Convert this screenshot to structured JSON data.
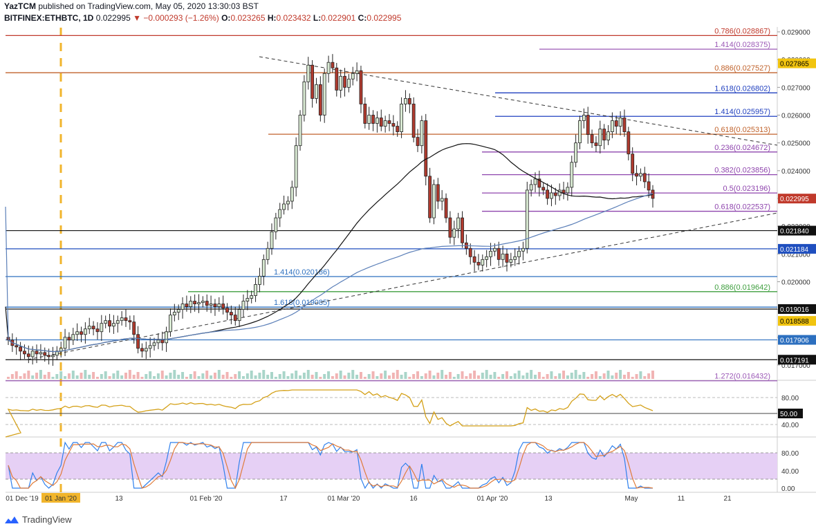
{
  "header": {
    "author": "YazTCM",
    "published_text": "published on TradingView.com, May 05, 2020 13:30:03 BST",
    "symbol": "BITFINEX:ETHBTC, 1D",
    "last": "0.022995",
    "change": "−0.000293 (−1.26%)",
    "o_label": "O:",
    "o": "0.023265",
    "h_label": "H:",
    "h": "0.023432",
    "l_label": "L:",
    "l": "0.022901",
    "c_label": "C:",
    "c": "0.022995"
  },
  "footer": {
    "brand": "TradingView"
  },
  "colors": {
    "up": "#3e8e3e",
    "down": "#b03030",
    "candle_up_fill": "#d9ead3",
    "candle_down_fill": "#b03a2e",
    "ma_black": "#111111",
    "ma_blue": "#5b7fb8",
    "rsi": "#d4a017",
    "stoch_k": "#2f80ed",
    "stoch_d": "#e07b39",
    "stoch_band": "#e6d0f5"
  },
  "price_axis": {
    "ticks": [
      "0.029000",
      "0.028000",
      "0.027000",
      "0.026000",
      "0.025000",
      "0.024000",
      "0.023000",
      "0.022000",
      "0.021000",
      "0.020000",
      "0.019000",
      "0.018000",
      "0.017000"
    ]
  },
  "time_axis": {
    "labels": [
      "01 Dec '19",
      "01 Jan '20",
      "13",
      "01 Feb '20",
      "17",
      "01 Mar '20",
      "16",
      "01 Apr '20",
      "13",
      "May",
      "11",
      "21"
    ]
  },
  "levels": [
    {
      "label": "0.786",
      "value": "0.028867",
      "color": "#c0392b"
    },
    {
      "label": "1.414",
      "value": "0.028375",
      "color": "#9b59b6"
    },
    {
      "label": "0.886",
      "value": "0.027527",
      "color": "#c0622b"
    },
    {
      "label": "1.618",
      "value": "0.026802",
      "color": "#1f3fbf"
    },
    {
      "label": "1.414",
      "value": "0.025957",
      "color": "#1f3fbf"
    },
    {
      "label": "0.618",
      "value": "0.025313",
      "color": "#c0622b"
    },
    {
      "label": "0.236",
      "value": "0.024672",
      "color": "#8e44ad"
    },
    {
      "label": "0.382",
      "value": "0.023856",
      "color": "#8e44ad"
    },
    {
      "label": "0.5",
      "value": "0.023196",
      "color": "#8e44ad"
    },
    {
      "label": "0.618",
      "value": "0.022537",
      "color": "#8e44ad"
    },
    {
      "label": "1.414",
      "value": "0.020186",
      "color": "#2c6fbf"
    },
    {
      "label": "0.886",
      "value": "0.019642",
      "color": "#3e9e3e"
    },
    {
      "label": "1.618",
      "value": "0.019085",
      "color": "#2c6fbf"
    },
    {
      "label": "1.272",
      "value": "0.016432",
      "color": "#9b59b6"
    }
  ],
  "price_tags": [
    {
      "value": "0.027865",
      "bg": "#f1c40f",
      "fg": "#000000"
    },
    {
      "value": "0.022995",
      "bg": "#c0392b",
      "fg": "#ffffff"
    },
    {
      "value": "0.021840",
      "bg": "#111111",
      "fg": "#ffffff"
    },
    {
      "value": "0.021184",
      "bg": "#1f4fbf",
      "fg": "#ffffff"
    },
    {
      "value": "0.019016",
      "bg": "#111111",
      "fg": "#ffffff"
    },
    {
      "value": "0.018588",
      "bg": "#f1c40f",
      "fg": "#000000"
    },
    {
      "value": "0.017906",
      "bg": "#2c6fbf",
      "fg": "#ffffff"
    },
    {
      "value": "0.017191",
      "bg": "#111111",
      "fg": "#ffffff"
    }
  ],
  "rsi_axis": {
    "ticks": [
      "80.00",
      "40.00"
    ],
    "tag": "50.00"
  },
  "stoch_axis": {
    "ticks": [
      "80.00",
      "40.00",
      "0.00"
    ]
  },
  "chart_data": {
    "type": "candlestick",
    "symbol": "BITFINEX:ETHBTC",
    "timeframe": "1D",
    "ylim": [
      0.0165,
      0.0292
    ],
    "series_note_close": "approximate daily closes, Dec 1 2019 – May 5 2020",
    "closes": [
      0.0179,
      0.0177,
      0.01765,
      0.0175,
      0.0174,
      0.0173,
      0.0175,
      0.0174,
      0.01745,
      0.01735,
      0.0173,
      0.01735,
      0.0175,
      0.0176,
      0.018,
      0.0179,
      0.0181,
      0.0182,
      0.0181,
      0.0183,
      0.0184,
      0.0183,
      0.0182,
      0.0185,
      0.0186,
      0.0184,
      0.0185,
      0.0186,
      0.0187,
      0.0186,
      0.01855,
      0.0181,
      0.0176,
      0.0175,
      0.0176,
      0.0177,
      0.0178,
      0.0179,
      0.0178,
      0.0182,
      0.0188,
      0.0189,
      0.019,
      0.0192,
      0.0191,
      0.0193,
      0.0192,
      0.01925,
      0.0193,
      0.01915,
      0.0192,
      0.0191,
      0.0192,
      0.01905,
      0.0189,
      0.0188,
      0.0186,
      0.019,
      0.0193,
      0.0194,
      0.0195,
      0.0199,
      0.0202,
      0.0208,
      0.0212,
      0.0218,
      0.0223,
      0.0226,
      0.0228,
      0.0229,
      0.0234,
      0.0249,
      0.026,
      0.0272,
      0.0278,
      0.0266,
      0.0271,
      0.026,
      0.0275,
      0.0279,
      0.0277,
      0.0269,
      0.0274,
      0.027,
      0.0273,
      0.0275,
      0.0276,
      0.0264,
      0.0257,
      0.026,
      0.0257,
      0.0259,
      0.0256,
      0.0258,
      0.0257,
      0.0256,
      0.0254,
      0.0264,
      0.0266,
      0.0264,
      0.0252,
      0.0249,
      0.0258,
      0.0238,
      0.0223,
      0.0235,
      0.0229,
      0.023,
      0.0223,
      0.0216,
      0.0219,
      0.0223,
      0.0214,
      0.0212,
      0.0209,
      0.0207,
      0.0206,
      0.0208,
      0.0209,
      0.0211,
      0.0212,
      0.0208,
      0.021,
      0.0207,
      0.0208,
      0.0209,
      0.0211,
      0.0212,
      0.0233,
      0.0235,
      0.0237,
      0.0234,
      0.0233,
      0.023,
      0.0232,
      0.0231,
      0.0233,
      0.0232,
      0.0234,
      0.0243,
      0.025,
      0.0258,
      0.026,
      0.0253,
      0.025,
      0.0249,
      0.0255,
      0.0251,
      0.0254,
      0.0258,
      0.0256,
      0.0259,
      0.0254,
      0.0246,
      0.0239,
      0.0238,
      0.0239,
      0.0236,
      0.0233,
      0.023
    ],
    "moving_averages": [
      {
        "color": "black",
        "values": "50-period style MA"
      },
      {
        "color": "blue",
        "values": "200-period style MA"
      }
    ]
  }
}
